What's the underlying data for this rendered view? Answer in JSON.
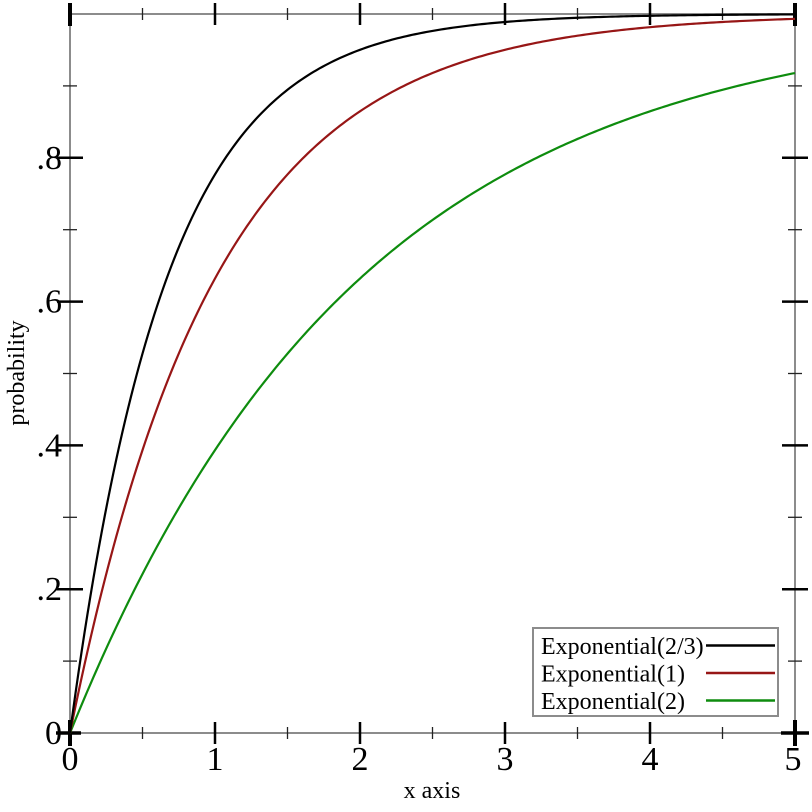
{
  "figure": {
    "background": "#ffffff"
  },
  "chart_data": {
    "type": "line",
    "title": "",
    "xlabel": "x axis",
    "ylabel": "probability",
    "xlim": [
      0,
      5
    ],
    "ylim": [
      0,
      1
    ],
    "grid": false,
    "x_major_ticks": [
      0,
      1,
      2,
      3,
      4,
      5
    ],
    "x_tick_labels": [
      "0",
      "1",
      "2",
      "3",
      "4",
      "5"
    ],
    "x_minor_ticks": [
      0.5,
      1.5,
      2.5,
      3.5,
      4.5
    ],
    "y_major_ticks": [
      0,
      0.2,
      0.4,
      0.6,
      0.8
    ],
    "y_tick_labels": [
      "0",
      ".2",
      ".4",
      ".6",
      ".8"
    ],
    "y_minor_ticks": [
      0.1,
      0.3,
      0.5,
      0.7,
      0.9
    ],
    "legend": {
      "position": "bottom-right",
      "border": true,
      "entries": [
        "Exponential(2/3)",
        "Exponential(1)",
        "Exponential(2)"
      ]
    },
    "x_samples": [
      0,
      0.5,
      1,
      1.5,
      2,
      2.5,
      3,
      3.5,
      4,
      4.5,
      5
    ],
    "series": [
      {
        "name": "Exponential(2/3)",
        "color": "#000000",
        "function": "CDF: 1 - exp(-1.5x)",
        "rate": 1.5,
        "values": [
          0,
          0.528,
          0.777,
          0.895,
          0.95,
          0.976,
          0.989,
          0.995,
          0.998,
          0.999,
          0.9994
        ]
      },
      {
        "name": "Exponential(1)",
        "color": "#971616",
        "function": "CDF: 1 - exp(-1x)",
        "rate": 1,
        "values": [
          0,
          0.393,
          0.632,
          0.777,
          0.865,
          0.918,
          0.95,
          0.97,
          0.982,
          0.989,
          0.993
        ]
      },
      {
        "name": "Exponential(2)",
        "color": "#0e8c0e",
        "function": "CDF: 1 - exp(-0.5x)",
        "rate": 0.5,
        "values": [
          0,
          0.221,
          0.393,
          0.528,
          0.632,
          0.713,
          0.777,
          0.826,
          0.865,
          0.895,
          0.918
        ]
      }
    ],
    "colors": {
      "frame": "#8c8c8c",
      "major_tick": "#000000",
      "minor_tick": "#222222",
      "text": "#000000",
      "legend_border": "#8c8c8c",
      "legend_bg": "#ffffff"
    }
  }
}
